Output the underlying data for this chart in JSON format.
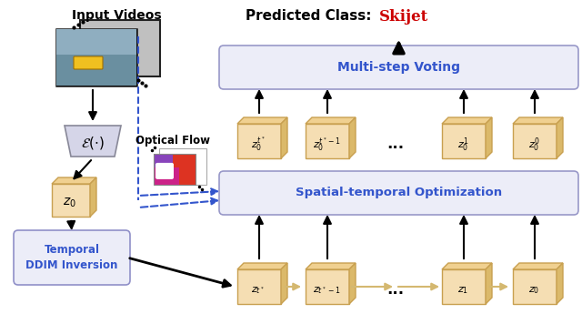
{
  "bg_color": "#ffffff",
  "title_text": "Predicted Class:",
  "title_skijet": "Skijet",
  "input_videos_label": "Input Videos",
  "encoder_label": "$\\mathcal{E}(\\cdot)$",
  "optical_flow_label": "Optical Flow",
  "z0_label": "$z_0$",
  "temporal_ddim_label": "Temporal\nDDIM Inversion",
  "multistep_voting_label": "Multi-step Voting",
  "spatial_temporal_label": "Spatial-temporal Optimization",
  "bottom_boxes_labels": [
    "$z_{t^*}$",
    "$z_{t^*-1}$",
    "...",
    "$z_1$",
    "$z_0$"
  ],
  "top_boxes_labels": [
    "$z_0^{t^*}$",
    "$z_0^{t^*-1}$",
    "...",
    "$z_0^{1}$",
    "$z_0^{0}$"
  ],
  "box_face_color": "#f5deb3",
  "box_right_color": "#dbb96a",
  "box_top_color": "#f0d090",
  "box_edge_color": "#c8a050",
  "multistep_bg": "#ecedf8",
  "spatial_bg": "#ecedf8",
  "temporal_ddim_bg": "#ecedf8",
  "blue_color": "#3355cc",
  "arrow_color": "#000000",
  "dashed_arrow_color": "#3355cc",
  "connector_color": "#d4b870"
}
